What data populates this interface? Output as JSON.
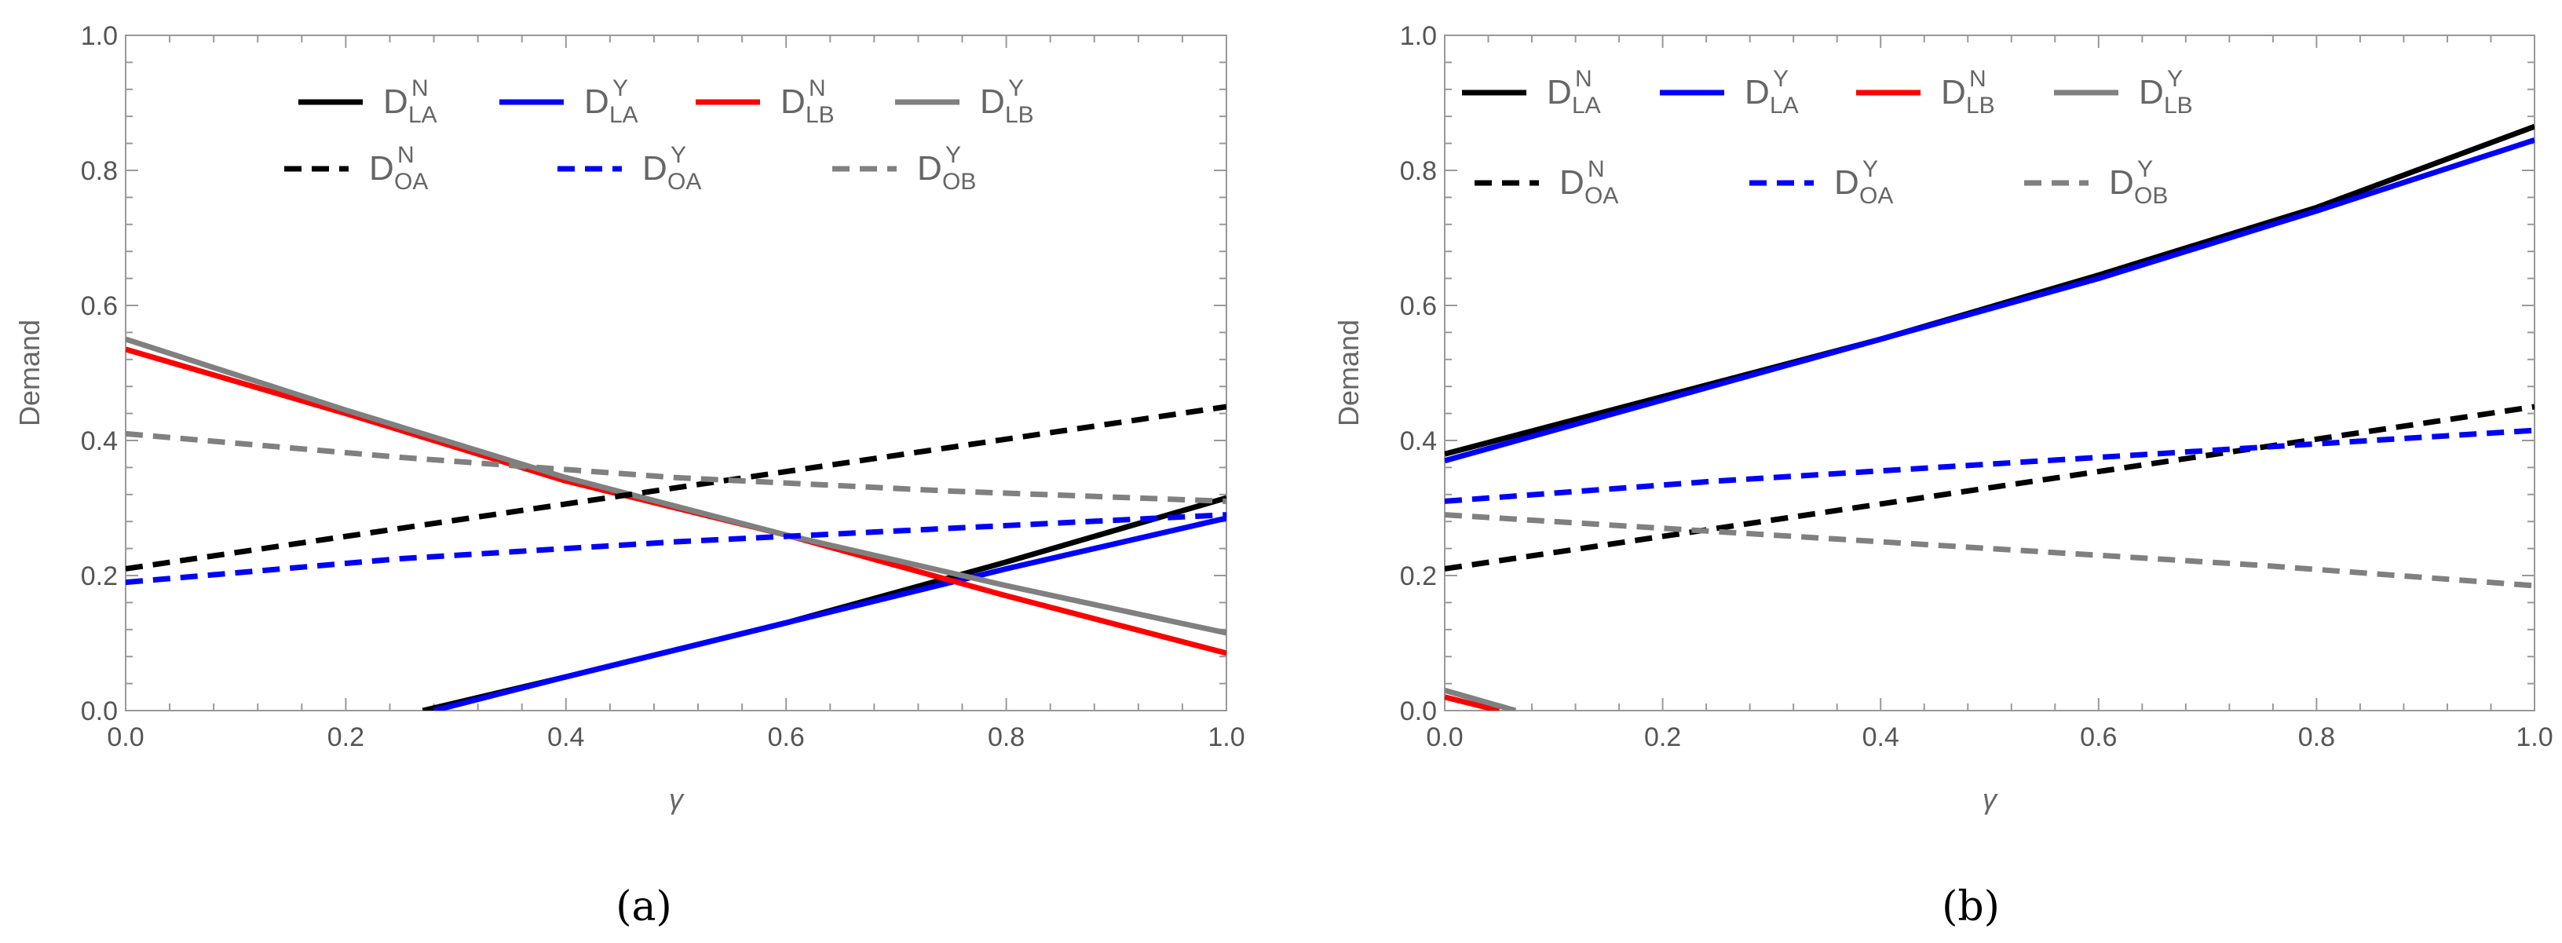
{
  "chart_data": [
    {
      "type": "line",
      "panel_label": "(a)",
      "xlabel": "γ",
      "ylabel": "Demand",
      "xlim": [
        0,
        1
      ],
      "ylim": [
        0,
        1
      ],
      "xticks": [
        "0.0",
        "0.2",
        "0.4",
        "0.6",
        "0.8",
        "1.0"
      ],
      "yticks": [
        "0.0",
        "0.2",
        "0.4",
        "0.6",
        "0.8",
        "1.0"
      ],
      "legend_position": "top-center",
      "series": [
        {
          "name": "D_LA^N",
          "base": "D",
          "sub": "LA",
          "sup": "N",
          "color": "#000000",
          "dash": "solid",
          "x": [
            0.27,
            0.4,
            0.6,
            0.8,
            1.0
          ],
          "y": [
            0.0,
            0.05,
            0.13,
            0.22,
            0.315
          ]
        },
        {
          "name": "D_LA^Y",
          "base": "D",
          "sub": "LA",
          "sup": "Y",
          "color": "#0000ff",
          "dash": "solid",
          "x": [
            0.28,
            0.4,
            0.6,
            0.8,
            1.0
          ],
          "y": [
            0.0,
            0.05,
            0.13,
            0.21,
            0.285
          ]
        },
        {
          "name": "D_LB^N",
          "base": "D",
          "sub": "LB",
          "sup": "N",
          "color": "#ff0000",
          "dash": "solid",
          "x": [
            0.0,
            0.2,
            0.4,
            0.6,
            0.8,
            1.0
          ],
          "y": [
            0.535,
            0.44,
            0.34,
            0.26,
            0.17,
            0.085
          ]
        },
        {
          "name": "D_LB^Y",
          "base": "D",
          "sub": "LB",
          "sup": "Y",
          "color": "#808080",
          "dash": "solid",
          "x": [
            0.0,
            0.2,
            0.4,
            0.6,
            0.8,
            1.0
          ],
          "y": [
            0.55,
            0.445,
            0.345,
            0.26,
            0.185,
            0.115
          ]
        },
        {
          "name": "D_OA^N",
          "base": "D",
          "sub": "OA",
          "sup": "N",
          "color": "#000000",
          "dash": "dashed",
          "x": [
            0.0,
            0.25,
            0.5,
            0.75,
            1.0
          ],
          "y": [
            0.21,
            0.27,
            0.33,
            0.39,
            0.45
          ]
        },
        {
          "name": "D_OA^Y",
          "base": "D",
          "sub": "OA",
          "sup": "Y",
          "color": "#0000ff",
          "dash": "dashed",
          "x": [
            0.0,
            0.25,
            0.5,
            0.75,
            1.0
          ],
          "y": [
            0.19,
            0.225,
            0.25,
            0.27,
            0.29
          ]
        },
        {
          "name": "D_OB^Y",
          "base": "D",
          "sub": "OB",
          "sup": "Y",
          "color": "#808080",
          "dash": "dashed",
          "x": [
            0.0,
            0.25,
            0.5,
            0.75,
            1.0
          ],
          "y": [
            0.41,
            0.375,
            0.345,
            0.325,
            0.31
          ]
        }
      ]
    },
    {
      "type": "line",
      "panel_label": "(b)",
      "xlabel": "γ",
      "ylabel": "Demand",
      "xlim": [
        0,
        1
      ],
      "ylim": [
        0,
        1
      ],
      "xticks": [
        "0.0",
        "0.2",
        "0.4",
        "0.6",
        "0.8",
        "1.0"
      ],
      "yticks": [
        "0.0",
        "0.2",
        "0.4",
        "0.6",
        "0.8",
        "1.0"
      ],
      "legend_position": "top-left",
      "series": [
        {
          "name": "D_LA^N",
          "base": "D",
          "sub": "LA",
          "sup": "N",
          "color": "#000000",
          "dash": "solid",
          "x": [
            0.0,
            0.2,
            0.4,
            0.6,
            0.8,
            1.0
          ],
          "y": [
            0.38,
            0.465,
            0.55,
            0.645,
            0.745,
            0.865
          ]
        },
        {
          "name": "D_LA^Y",
          "base": "D",
          "sub": "LA",
          "sup": "Y",
          "color": "#0000ff",
          "dash": "solid",
          "x": [
            0.0,
            0.2,
            0.4,
            0.6,
            0.8,
            1.0
          ],
          "y": [
            0.37,
            0.46,
            0.55,
            0.64,
            0.74,
            0.845
          ]
        },
        {
          "name": "D_LB^N",
          "base": "D",
          "sub": "LB",
          "sup": "N",
          "color": "#ff0000",
          "dash": "solid",
          "x": [
            0.0,
            0.05
          ],
          "y": [
            0.02,
            0.0
          ]
        },
        {
          "name": "D_LB^Y",
          "base": "D",
          "sub": "LB",
          "sup": "Y",
          "color": "#808080",
          "dash": "solid",
          "x": [
            0.0,
            0.065
          ],
          "y": [
            0.03,
            0.0
          ]
        },
        {
          "name": "D_OA^N",
          "base": "D",
          "sub": "OA",
          "sup": "N",
          "color": "#000000",
          "dash": "dashed",
          "x": [
            0.0,
            0.25,
            0.5,
            0.75,
            1.0
          ],
          "y": [
            0.21,
            0.27,
            0.33,
            0.39,
            0.45
          ]
        },
        {
          "name": "D_OA^Y",
          "base": "D",
          "sub": "OA",
          "sup": "Y",
          "color": "#0000ff",
          "dash": "dashed",
          "x": [
            0.0,
            0.25,
            0.5,
            0.75,
            1.0
          ],
          "y": [
            0.31,
            0.34,
            0.365,
            0.39,
            0.415
          ]
        },
        {
          "name": "D_OB^Y",
          "base": "D",
          "sub": "OB",
          "sup": "Y",
          "color": "#808080",
          "dash": "dashed",
          "x": [
            0.0,
            0.25,
            0.5,
            0.75,
            1.0
          ],
          "y": [
            0.29,
            0.265,
            0.24,
            0.215,
            0.185
          ]
        }
      ]
    }
  ]
}
